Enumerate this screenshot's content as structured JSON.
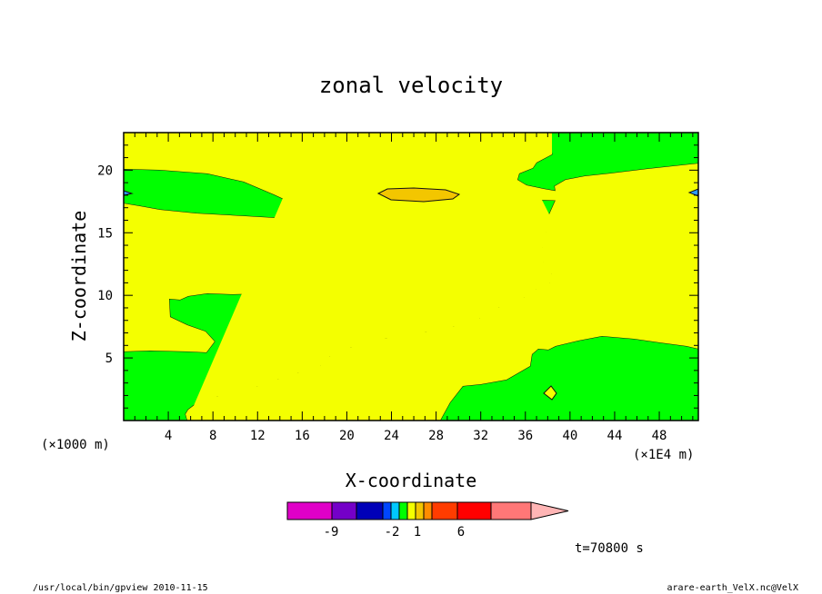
{
  "chart_data": {
    "type": "heatmap",
    "title": "zonal velocity",
    "xlabel": "X-coordinate",
    "ylabel": "Z-coordinate",
    "x_scale_note": "(×1000 m)",
    "x_unit_note": "(×1E4 m)",
    "x_ticks": [
      "4",
      "8",
      "12",
      "16",
      "20",
      "24",
      "28",
      "32",
      "36",
      "40",
      "44",
      "48"
    ],
    "y_ticks": [
      "5",
      "10",
      "15",
      "20"
    ],
    "xlim": [
      0,
      51.5
    ],
    "ylim": [
      0,
      23
    ],
    "fields": {
      "background": "#f4ff00",
      "green": "#00ff00",
      "orange_band": "#f3c600",
      "blue_small": "#2f9cff",
      "outline": "#111111"
    },
    "colorbar": {
      "bins": [
        {
          "color": "#e000c8"
        },
        {
          "color": "#7400c8"
        },
        {
          "color": "#0000b8"
        },
        {
          "color": "#0046ff"
        },
        {
          "color": "#00c8ff"
        },
        {
          "color": "#00ff00"
        },
        {
          "color": "#f4ff00"
        },
        {
          "color": "#f3c600"
        },
        {
          "color": "#ff8c00"
        },
        {
          "color": "#ff3c00"
        },
        {
          "color": "#ff0000"
        },
        {
          "color": "#ff7777"
        },
        {
          "color": "#ffb5b5"
        }
      ],
      "labels": [
        "-9",
        "-2",
        "1",
        "6"
      ]
    },
    "timestamp": "t=70800 s",
    "footer_left": "/usr/local/bin/gpview  2010-11-15",
    "footer_right": "arare-earth_VelX.nc@VelX"
  }
}
